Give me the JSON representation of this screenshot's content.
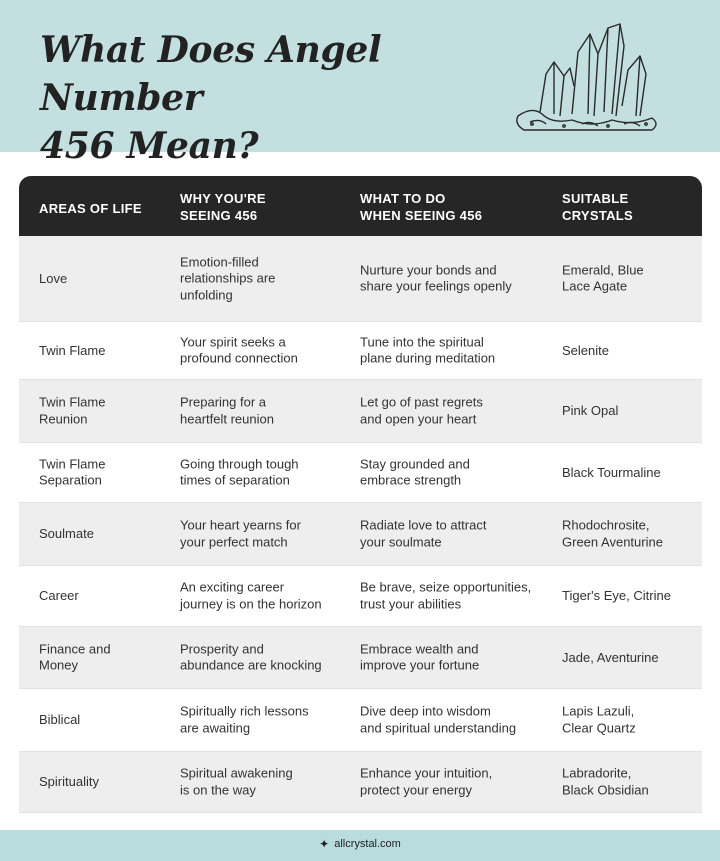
{
  "header": {
    "title_line1": "What Does Angel Number",
    "title_line2": "456 Mean?",
    "illustration_icon": "crystal-cluster-icon",
    "background_color": "#c3dfe0"
  },
  "table": {
    "header_color": "#262626",
    "columns": [
      "AREAS OF LIFE",
      "WHY YOU'RE\nSEEING 456",
      "WHAT TO DO\nWHEN SEEING 456",
      "SUITABLE\nCRYSTALS"
    ],
    "rows": [
      {
        "area": "Love",
        "why": "Emotion-filled\nrelationships are\nunfolding",
        "what": "Nurture your bonds and\nshare your feelings openly",
        "crystals": "Emerald, Blue\nLace Agate"
      },
      {
        "area": "Twin Flame",
        "why": "Your spirit seeks a\nprofound connection",
        "what": "Tune into the spiritual\nplane during meditation",
        "crystals": "Selenite"
      },
      {
        "area": "Twin Flame\nReunion",
        "why": "Preparing for a\nheartfelt reunion",
        "what": "Let go of past regrets\nand open your heart",
        "crystals": "Pink Opal"
      },
      {
        "area": "Twin Flame\nSeparation",
        "why": "Going through tough\ntimes of separation",
        "what": "Stay grounded and\nembrace strength",
        "crystals": "Black Tourmaline"
      },
      {
        "area": "Soulmate",
        "why": "Your heart yearns for\nyour perfect match",
        "what": "Radiate love to attract\nyour soulmate",
        "crystals": "Rhodochrosite,\nGreen Aventurine"
      },
      {
        "area": "Career",
        "why": "An exciting career\njourney is on the horizon",
        "what": "Be brave, seize opportunities,\ntrust your abilities",
        "crystals": "Tiger's Eye, Citrine"
      },
      {
        "area": "Finance and\nMoney",
        "why": "Prosperity and\nabundance are knocking",
        "what": "Embrace wealth and\nimprove your fortune",
        "crystals": "Jade, Aventurine"
      },
      {
        "area": "Biblical",
        "why": "Spiritually rich lessons\nare awaiting",
        "what": "Dive deep into wisdom\nand spiritual understanding",
        "crystals": "Lapis Lazuli,\nClear Quartz"
      },
      {
        "area": "Spirituality",
        "why": "Spiritual awakening\nis on the way",
        "what": "Enhance your intuition,\nprotect your energy",
        "crystals": "Labradorite,\nBlack Obsidian"
      }
    ]
  },
  "footer": {
    "site": "allcrystal.com",
    "icon": "sparkle-icon",
    "background_color": "#b9dcdd"
  }
}
